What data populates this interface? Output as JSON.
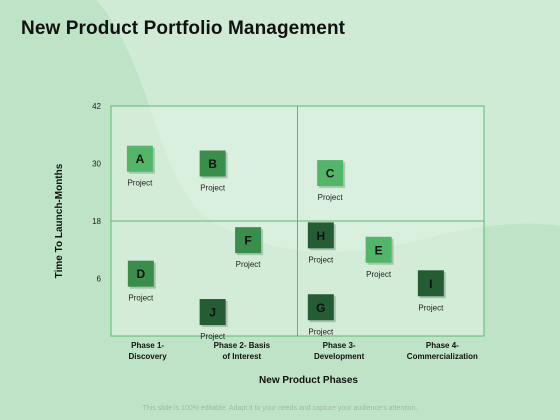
{
  "page": {
    "title": "New Product Portfolio Management",
    "footer": "This slide is 100% editable. Adapt it to your needs and capture your audience's attention."
  },
  "colors": {
    "background": "#bfe3c6",
    "blob": "#d6efda",
    "plot_area": "#e2f4e5",
    "grid": "#5cb870",
    "box_light": "#52b668",
    "box_mid": "#3a8e4b",
    "box_dark": "#245c33",
    "box_text": "#111111"
  },
  "chart_data": {
    "type": "scatter",
    "title": "New Product Portfolio Management",
    "xlabel": "New Product Phases",
    "ylabel": "Time To Launch-Months",
    "x_categories": [
      [
        "Phase 1-",
        "Discovery"
      ],
      [
        "Phase 2- Basis",
        "of Interest"
      ],
      [
        "Phase 3-",
        "Development"
      ],
      [
        "Phase 4-",
        "Commercialization"
      ]
    ],
    "x_range": [
      0,
      4
    ],
    "ylim": [
      -6,
      42
    ],
    "yticks": [
      6,
      18,
      30,
      42
    ],
    "quadrant_lines": {
      "x": 2,
      "y": 18
    },
    "grid": false,
    "point_label": "Project",
    "points": [
      {
        "letter": "A",
        "x": 0.31,
        "y": 31,
        "tone": "light"
      },
      {
        "letter": "B",
        "x": 1.09,
        "y": 30,
        "tone": "mid"
      },
      {
        "letter": "C",
        "x": 2.35,
        "y": 28,
        "tone": "light"
      },
      {
        "letter": "D",
        "x": 0.32,
        "y": 7,
        "tone": "mid"
      },
      {
        "letter": "F",
        "x": 1.47,
        "y": 14,
        "tone": "mid"
      },
      {
        "letter": "H",
        "x": 2.25,
        "y": 15,
        "tone": "dark"
      },
      {
        "letter": "E",
        "x": 2.87,
        "y": 12,
        "tone": "light"
      },
      {
        "letter": "I",
        "x": 3.43,
        "y": 5,
        "tone": "dark"
      },
      {
        "letter": "J",
        "x": 1.09,
        "y": -1,
        "tone": "dark"
      },
      {
        "letter": "G",
        "x": 2.25,
        "y": 0,
        "tone": "dark"
      }
    ]
  }
}
